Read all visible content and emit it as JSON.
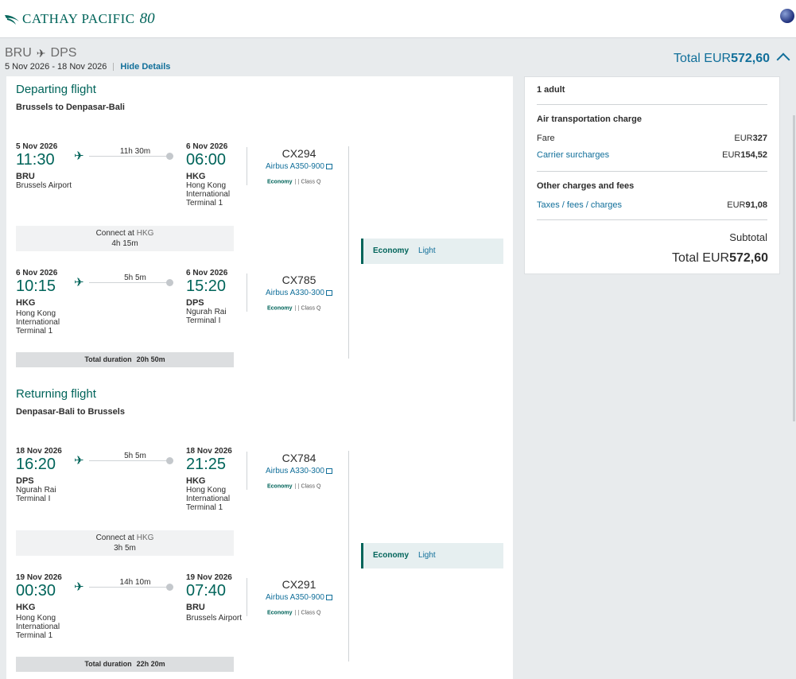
{
  "header": {
    "brand": "CATHAY PACIFIC",
    "anniversary": "80",
    "brand_color": "#00645a"
  },
  "summary": {
    "origin": "BRU",
    "destination": "DPS",
    "dates": "5 Nov 2026 - 18 Nov 2026",
    "hide_details": "Hide Details",
    "total_label": "Total EUR",
    "total_amount": "572,60"
  },
  "departing": {
    "title": "Departing flight",
    "subtitle": "Brussels to Denpasar-Bali",
    "segments": [
      {
        "dep_date": "5 Nov 2026",
        "dep_time": "11:30",
        "dep_code": "BRU",
        "dep_name": "Brussels Airport",
        "duration": "11h 30m",
        "arr_date": "6 Nov 2026",
        "arr_time": "06:00",
        "arr_code": "HKG",
        "arr_name": "Hong Kong International Terminal 1",
        "flight": "CX294",
        "aircraft": "Airbus A350-900",
        "cabin": "Economy",
        "class": "Class Q"
      },
      {
        "dep_date": "6 Nov 2026",
        "dep_time": "10:15",
        "dep_code": "HKG",
        "dep_name": "Hong Kong International Terminal 1",
        "duration": "5h 5m",
        "arr_date": "6 Nov 2026",
        "arr_time": "15:20",
        "arr_code": "DPS",
        "arr_name": "Ngurah Rai Terminal I",
        "flight": "CX785",
        "aircraft": "Airbus A330-300",
        "cabin": "Economy",
        "class": "Class Q"
      }
    ],
    "connect_label": "Connect at",
    "connect_airport": "HKG",
    "connect_time": "4h 15m",
    "total_duration_label": "Total duration",
    "total_duration": "20h 50m",
    "fare_cabin": "Economy",
    "fare_type": "Light"
  },
  "returning": {
    "title": "Returning flight",
    "subtitle": "Denpasar-Bali to Brussels",
    "segments": [
      {
        "dep_date": "18 Nov 2026",
        "dep_time": "16:20",
        "dep_code": "DPS",
        "dep_name": "Ngurah Rai Terminal I",
        "duration": "5h 5m",
        "arr_date": "18 Nov 2026",
        "arr_time": "21:25",
        "arr_code": "HKG",
        "arr_name": "Hong Kong International Terminal 1",
        "flight": "CX784",
        "aircraft": "Airbus A330-300",
        "cabin": "Economy",
        "class": "Class Q"
      },
      {
        "dep_date": "19 Nov 2026",
        "dep_time": "00:30",
        "dep_code": "HKG",
        "dep_name": "Hong Kong International Terminal 1",
        "duration": "14h 10m",
        "arr_date": "19 Nov 2026",
        "arr_time": "07:40",
        "arr_code": "BRU",
        "arr_name": "Brussels Airport",
        "flight": "CX291",
        "aircraft": "Airbus A350-900",
        "cabin": "Economy",
        "class": "Class Q"
      }
    ],
    "connect_label": "Connect at",
    "connect_airport": "HKG",
    "connect_time": "3h 5m",
    "total_duration_label": "Total duration",
    "total_duration": "22h 20m",
    "fare_cabin": "Economy",
    "fare_type": "Light"
  },
  "price": {
    "passengers": "1 adult",
    "air_charge_title": "Air transportation charge",
    "fare_label": "Fare",
    "fare_currency": "EUR",
    "fare_amount": "327",
    "surcharge_label": "Carrier surcharges",
    "surcharge_currency": "EUR",
    "surcharge_amount": "154,52",
    "other_title": "Other charges and fees",
    "taxes_label": "Taxes / fees / charges",
    "taxes_currency": "EUR",
    "taxes_amount": "91,08",
    "subtotal_label": "Subtotal",
    "total_label": "Total EUR",
    "total_amount": "572,60"
  }
}
